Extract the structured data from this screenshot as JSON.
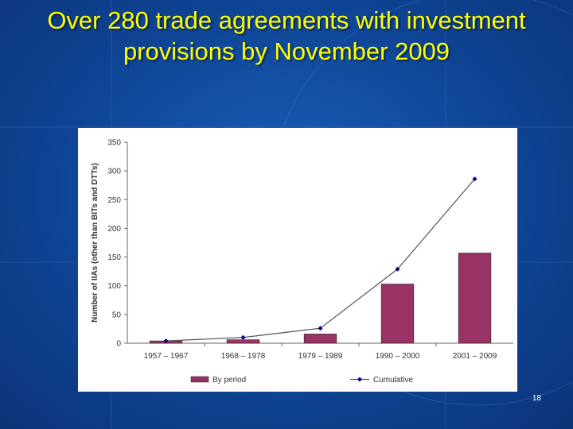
{
  "slide": {
    "title": "Over 280 trade agreements with investment provisions by November 2009",
    "page_number": "18",
    "title_color": "#ffff00",
    "background_color": "#1355ab"
  },
  "chart_data": {
    "type": "bar",
    "categories": [
      "1957 – 1967",
      "1968 – 1978",
      "1979 – 1989",
      "1990 – 2000",
      "2001 – 2009"
    ],
    "series": [
      {
        "name": "By period",
        "type": "bar",
        "color": "#993366",
        "values": [
          4,
          6,
          16,
          103,
          157
        ]
      },
      {
        "name": "Cumulative",
        "type": "line",
        "color": "#000080",
        "marker": "diamond",
        "values": [
          4,
          10,
          26,
          129,
          286
        ]
      }
    ],
    "ylabel": "Number of IIAs (other than BITs and DTTs)",
    "xlabel": "",
    "ylim": [
      0,
      350
    ],
    "yticks": [
      "0",
      "50",
      "100",
      "150",
      "200",
      "250",
      "300",
      "350"
    ],
    "grid": false,
    "legend_position": "bottom"
  }
}
